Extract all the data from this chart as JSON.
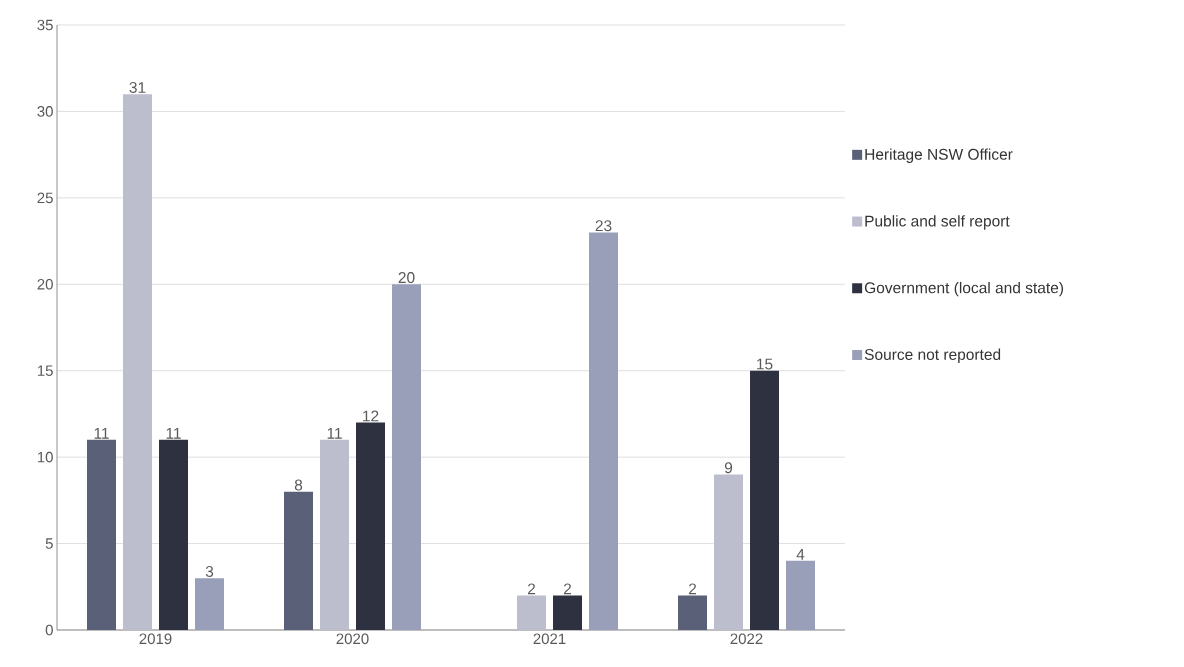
{
  "chart_data": {
    "type": "bar",
    "categories": [
      "2019",
      "2020",
      "2021",
      "2022"
    ],
    "series": [
      {
        "name": "Heritage NSW Officer",
        "color": "#5b6079",
        "values": [
          11,
          8,
          null,
          2
        ]
      },
      {
        "name": "Public and self report",
        "color": "#bcbecd",
        "values": [
          31,
          11,
          2,
          9
        ]
      },
      {
        "name": "Government (local and state)",
        "color": "#2e3140",
        "values": [
          11,
          12,
          2,
          15
        ]
      },
      {
        "name": "Source not reported",
        "color": "#9a9fb9",
        "values": [
          3,
          20,
          23,
          4
        ]
      }
    ],
    "ylim": [
      0,
      35
    ],
    "yticks": [
      0,
      5,
      10,
      15,
      20,
      25,
      30,
      35
    ],
    "grid": "y",
    "legend": "right",
    "data_labels": true
  }
}
